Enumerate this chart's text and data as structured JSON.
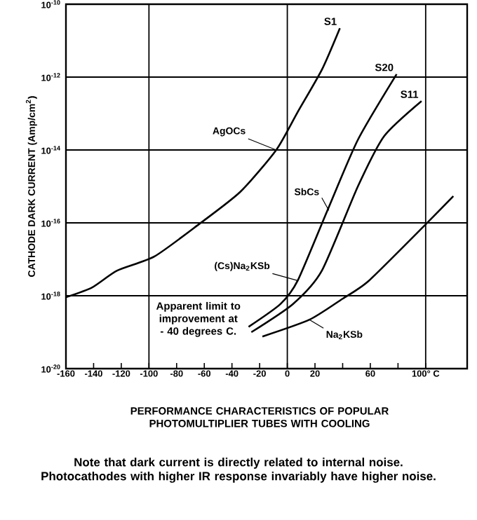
{
  "chart_data": {
    "type": "line",
    "title": "PERFORMANCE CHARACTERISTICS OF POPULAR PHOTOMULTIPLIER TUBES WITH COOLING",
    "ylabel": "CATHODE DARK CURRENT (Amp/cm$^{2}$)",
    "log": "y",
    "grid": "y",
    "xlim": [
      -160,
      130
    ],
    "xticks": [
      -160,
      -140,
      -120,
      -100,
      -80,
      -60,
      -40,
      -20,
      0,
      20,
      {
        "value": 40,
        "label": null
      },
      60,
      {
        "value": 80,
        "label": null
      },
      {
        "value": 100,
        "label": "100° C"
      }
    ],
    "ylim": [
      1e-20,
      1e-10
    ],
    "yticks": [
      {
        "value": 1e-20,
        "label": "10$^{-20}$"
      },
      {
        "value": 1e-18,
        "label": "10$^{-18}$"
      },
      {
        "value": 1e-16,
        "label": "10$^{-16}$"
      },
      {
        "value": 1e-14,
        "label": "10$^{-14}$"
      },
      {
        "value": 1e-12,
        "label": "10$^{-12}$"
      },
      {
        "value": 1e-10,
        "label": "10$^{-10}$"
      }
    ],
    "ref_lines": [
      {
        "axis": "x",
        "value": -100
      },
      {
        "axis": "x",
        "value": 0
      },
      {
        "axis": "x",
        "value": 100
      }
    ],
    "series": [
      {
        "name": "S1",
        "color": "#000000",
        "x": [
          -160,
          -141,
          -123,
          -96,
          -64,
          -34,
          -8,
          7.5,
          25,
          38
        ],
        "values": [
          9.1e-19,
          1.7e-18,
          4.9e-18,
          1.2e-17,
          9.1e-17,
          7.1e-16,
          1e-14,
          1.1e-13,
          1.6e-12,
          2.2e-11
        ]
      },
      {
        "name": "S20",
        "color": "#000000",
        "x": [
          -28,
          -5,
          7.5,
          29,
          51,
          79
        ],
        "values": [
          1.4e-19,
          5.9e-19,
          2.6e-18,
          2.2e-16,
          1.9e-14,
          1.2e-12
        ]
      },
      {
        "name": "S11",
        "color": "#000000",
        "x": [
          -26,
          4,
          25,
          51,
          70,
          97
        ],
        "values": [
          1e-19,
          5.9e-19,
          4.9e-18,
          1e-15,
          2.4e-14,
          2.2e-13
        ]
      },
      {
        "color": "#000000",
        "x": [
          -18,
          16,
          40,
          59,
          100,
          120
        ],
        "values": [
          7.6e-20,
          2.2e-19,
          8.3e-19,
          2.6e-18,
          9.1e-17,
          5.4e-16
        ]
      }
    ],
    "annotations": [
      {
        "text": "AgOCs",
        "x": -8,
        "y": 1e-14
      },
      {
        "text": "SbCs",
        "x": 30,
        "y": 2.2e-16
      },
      {
        "text": "(Cs)Na$_{2}$KSb",
        "x": 7.5,
        "y": 2.6e-18
      },
      {
        "text": "Na$_{2}$KSb",
        "x": 16,
        "y": 2.2e-19
      },
      "Apparent limit to improvement at - 40 degrees C.",
      "Note that dark current is directly related to internal noise. Photocathodes with higher IR response invariably have higher noise."
    ]
  }
}
